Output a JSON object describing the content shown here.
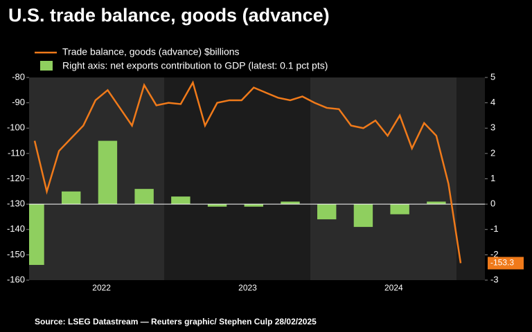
{
  "chart_data": {
    "type": "combo",
    "title": "U.S. trade balance, goods (advance)",
    "source": "Source: LSEG Datastream — Reuters graphic/ Stephen Culp  28/02/2025",
    "categories": [
      null,
      null,
      null,
      null,
      null,
      "2022",
      null,
      null,
      null,
      null,
      null,
      null,
      null,
      null,
      null,
      null,
      null,
      "2023",
      null,
      null,
      null,
      null,
      null,
      null,
      null,
      null,
      null,
      null,
      null,
      "2024",
      null,
      null,
      null,
      null,
      null,
      null
    ],
    "series": [
      {
        "name": "Trade balance, goods (advance) $billions",
        "type": "line",
        "color": "#f07a1a",
        "values": [
          -105,
          -125,
          -109,
          -104,
          -99,
          -89,
          -85,
          -92,
          -99,
          -83,
          -91,
          -90,
          -90.5,
          -82,
          -99,
          -90,
          -89,
          -89,
          -84,
          -86,
          -88,
          -89,
          -87.5,
          -90,
          -92,
          -92.5,
          -99,
          -100,
          -97,
          -103,
          -95,
          -108,
          -98,
          -103,
          -122,
          -153.3
        ]
      },
      {
        "name": "Right axis: net exports contribution to GDP (latest: 0.1 pct pts)",
        "type": "bar",
        "color": "#8fcf5f",
        "axis": "y2",
        "values": [
          -2.4,
          null,
          null,
          0.5,
          null,
          null,
          2.5,
          null,
          null,
          0.6,
          null,
          null,
          0.3,
          null,
          null,
          -0.1,
          null,
          null,
          -0.1,
          null,
          null,
          0.1,
          null,
          null,
          -0.6,
          null,
          null,
          -0.9,
          null,
          null,
          -0.4,
          null,
          null,
          0.1,
          null,
          null
        ]
      }
    ],
    "ylim": [
      -160,
      -80
    ],
    "yticks": [
      -80,
      -90,
      -100,
      -110,
      -120,
      -130,
      -140,
      -150,
      -160
    ],
    "y2lim": [
      -3,
      5
    ],
    "y2ticks": [
      5,
      4,
      3,
      2,
      1,
      0,
      -1,
      -2,
      -3
    ]
  }
}
